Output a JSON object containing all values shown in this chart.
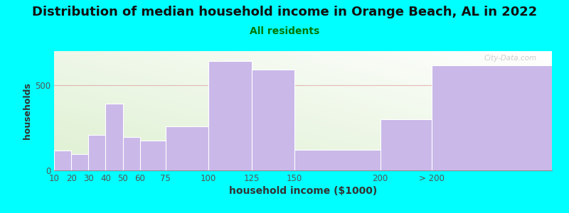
{
  "title": "Distribution of median household income in Orange Beach, AL in 2022",
  "subtitle": "All residents",
  "xlabel": "household income ($1000)",
  "ylabel": "households",
  "background_outer": "#00FFFF",
  "bar_color": "#c9b8e8",
  "bar_edge_color": "#ffffff",
  "title_fontsize": 13,
  "subtitle_fontsize": 10,
  "xlabel_fontsize": 10,
  "ylabel_fontsize": 9,
  "tick_fontsize": 8.5,
  "watermark": "City-Data.com",
  "categories": [
    "10",
    "20",
    "30",
    "40",
    "50",
    "60",
    "75",
    "100",
    "125",
    "150",
    "200",
    "> 200"
  ],
  "bin_lefts": [
    10,
    20,
    30,
    40,
    50,
    60,
    75,
    100,
    125,
    150,
    200,
    230
  ],
  "bin_widths": [
    10,
    10,
    10,
    10,
    10,
    15,
    25,
    25,
    25,
    50,
    30,
    70
  ],
  "values": [
    115,
    95,
    210,
    390,
    195,
    175,
    260,
    640,
    590,
    120,
    300,
    615
  ],
  "ylim": [
    0,
    700
  ],
  "yticks": [
    0,
    500
  ],
  "xtick_positions": [
    10,
    20,
    30,
    40,
    50,
    60,
    75,
    100,
    125,
    150,
    200,
    230
  ],
  "xtick_labels": [
    "10",
    "20",
    "30",
    "40",
    "50",
    "60",
    "75",
    "100",
    "125",
    "150",
    "200",
    "> 200"
  ],
  "xlim": [
    10,
    300
  ],
  "grid_color": "#dd9090",
  "grid_alpha": 0.6
}
